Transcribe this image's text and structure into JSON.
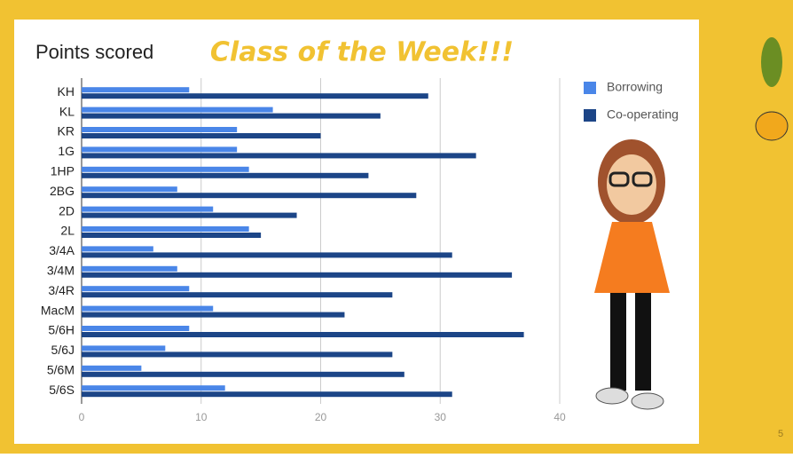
{
  "chart_data": {
    "type": "bar",
    "orientation": "horizontal",
    "title": "Points scored",
    "subtitle": "Class of the Week!!!",
    "categories": [
      "KH",
      "KL",
      "KR",
      "1G",
      "1HP",
      "2BG",
      "2D",
      "2L",
      "3/4A",
      "3/4M",
      "3/4R",
      "MacM",
      "5/6H",
      "5/6J",
      "5/6M",
      "5/6S"
    ],
    "series": [
      {
        "name": "Borrowing",
        "color": "#4a86e8",
        "values": [
          9,
          16,
          13,
          13,
          14,
          8,
          11,
          14,
          6,
          8,
          9,
          11,
          9,
          7,
          5,
          12
        ]
      },
      {
        "name": "Co-operating",
        "color": "#1c4587",
        "values": [
          29,
          25,
          20,
          33,
          24,
          28,
          18,
          15,
          31,
          36,
          26,
          22,
          37,
          26,
          27,
          31
        ]
      }
    ],
    "xlim": [
      0,
      40
    ],
    "xticks": [
      0,
      10,
      20,
      30,
      40
    ],
    "grid": true,
    "legend": "right"
  },
  "slide": {
    "page_number": "5"
  }
}
